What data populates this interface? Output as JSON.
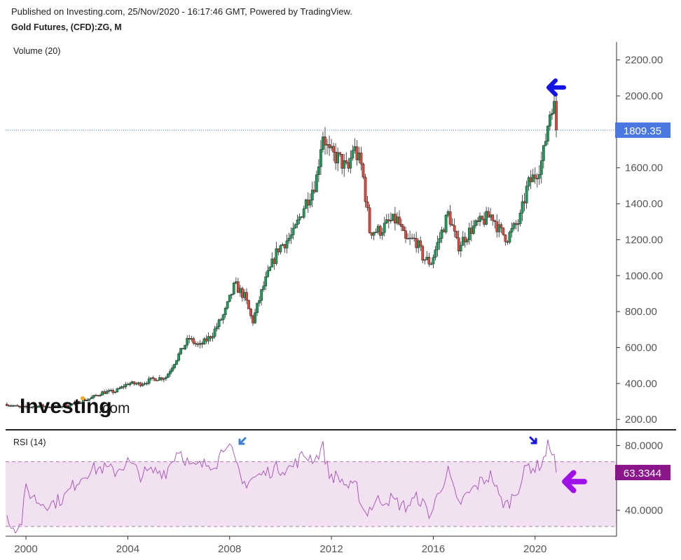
{
  "header": {
    "published": "Published on Investing.com, 25/Nov/2020 - 16:17:46 GMT, Powered by TradingView.",
    "title": "Gold Futures, (CFD):ZG, M"
  },
  "panes": {
    "volume_label": "Volume (20)",
    "rsi_label": "RSI (14)"
  },
  "watermark": {
    "brand": "Investing",
    "suffix": ".com"
  },
  "colors": {
    "up": "#1b9e5a",
    "down": "#e0473d",
    "price_line": "#4a78e0",
    "rsi_line": "#a24fb5",
    "rsi_band": "#f2e1f0",
    "rsi_band_line": "#b07ab0",
    "arrow_blue": "#1414e6",
    "arrow_lightblue": "#3d7fd0",
    "arrow_purple": "#a010e8",
    "rsi_badge": "#8b168b"
  },
  "icons": {
    "price_arrow": "arrow-left-icon",
    "rsi_arrow": "arrow-left-icon",
    "rsi_peak_markers": "arrow-down-icon"
  },
  "chart_data": [
    {
      "type": "candlestick",
      "title": "Gold Futures, (CFD):ZG, M",
      "y_ticks": [
        "2200.00",
        "2000.00",
        "1800.00",
        "1600.00",
        "1400.00",
        "1200.00",
        "1000.00",
        "800.00",
        "600.00",
        "400.00",
        "200.00"
      ],
      "y_tick_values": [
        2200,
        2000,
        1800,
        1600,
        1400,
        1200,
        1000,
        800,
        600,
        400,
        200
      ],
      "x_ticks": [
        "2000",
        "2004",
        "2008",
        "2012",
        "2016",
        "2020"
      ],
      "x_tick_values": [
        2000,
        2004,
        2008,
        2012,
        2016,
        2020
      ],
      "ylim": [
        150,
        2300
      ],
      "xlim": [
        1999.2,
        2023.2
      ],
      "last_price": 1809.35,
      "last_price_label": "1809.35",
      "anchors": [
        [
          1999.25,
          285
        ],
        [
          1999.8,
          265
        ],
        [
          2000.5,
          275
        ],
        [
          2001.2,
          268
        ],
        [
          2001.8,
          285
        ],
        [
          2002.5,
          315
        ],
        [
          2003.0,
          350
        ],
        [
          2003.5,
          355
        ],
        [
          2004.0,
          400
        ],
        [
          2004.5,
          398
        ],
        [
          2005.0,
          425
        ],
        [
          2005.5,
          435
        ],
        [
          2006.0,
          560
        ],
        [
          2006.4,
          650
        ],
        [
          2006.8,
          605
        ],
        [
          2007.3,
          670
        ],
        [
          2007.8,
          790
        ],
        [
          2008.2,
          950
        ],
        [
          2008.6,
          880
        ],
        [
          2008.9,
          740
        ],
        [
          2009.3,
          930
        ],
        [
          2009.9,
          1150
        ],
        [
          2010.5,
          1230
        ],
        [
          2010.9,
          1380
        ],
        [
          2011.4,
          1530
        ],
        [
          2011.65,
          1800
        ],
        [
          2011.9,
          1680
        ],
        [
          2012.3,
          1650
        ],
        [
          2012.65,
          1580
        ],
        [
          2012.85,
          1720
        ],
        [
          2013.2,
          1600
        ],
        [
          2013.5,
          1250
        ],
        [
          2013.9,
          1250
        ],
        [
          2014.3,
          1300
        ],
        [
          2014.6,
          1310
        ],
        [
          2014.9,
          1190
        ],
        [
          2015.3,
          1200
        ],
        [
          2015.6,
          1100
        ],
        [
          2015.9,
          1070
        ],
        [
          2016.3,
          1230
        ],
        [
          2016.6,
          1350
        ],
        [
          2016.95,
          1160
        ],
        [
          2017.5,
          1260
        ],
        [
          2017.9,
          1300
        ],
        [
          2018.3,
          1340
        ],
        [
          2018.6,
          1250
        ],
        [
          2018.9,
          1210
        ],
        [
          2019.4,
          1310
        ],
        [
          2019.7,
          1500
        ],
        [
          2020.0,
          1560
        ],
        [
          2020.3,
          1650
        ],
        [
          2020.55,
          1890
        ],
        [
          2020.7,
          1980
        ],
        [
          2020.8,
          1890
        ],
        [
          2020.87,
          1809
        ]
      ]
    },
    {
      "type": "line",
      "title": "RSI (14)",
      "y_ticks": [
        "80.0000",
        "40.0000"
      ],
      "y_tick_values": [
        80,
        40
      ],
      "overbought": 70,
      "oversold": 30,
      "ylim": [
        24,
        88
      ],
      "last_value": 63.3344,
      "last_value_label": "63.3344",
      "anchors": [
        [
          1999.25,
          37
        ],
        [
          1999.5,
          30
        ],
        [
          1999.8,
          30
        ],
        [
          2000.0,
          53
        ],
        [
          2000.5,
          45
        ],
        [
          2001.0,
          44
        ],
        [
          2001.5,
          48
        ],
        [
          2002.0,
          58
        ],
        [
          2002.5,
          65
        ],
        [
          2003.0,
          66
        ],
        [
          2003.5,
          64
        ],
        [
          2004.0,
          70
        ],
        [
          2004.5,
          62
        ],
        [
          2005.0,
          64
        ],
        [
          2005.5,
          64
        ],
        [
          2006.0,
          78
        ],
        [
          2006.5,
          66
        ],
        [
          2007.0,
          68
        ],
        [
          2007.5,
          70
        ],
        [
          2007.9,
          84
        ],
        [
          2008.2,
          70
        ],
        [
          2008.5,
          56
        ],
        [
          2008.9,
          60
        ],
        [
          2009.3,
          62
        ],
        [
          2009.8,
          66
        ],
        [
          2010.4,
          66
        ],
        [
          2010.9,
          74
        ],
        [
          2011.4,
          72
        ],
        [
          2011.65,
          80
        ],
        [
          2011.9,
          62
        ],
        [
          2012.3,
          60
        ],
        [
          2012.7,
          54
        ],
        [
          2013.0,
          54
        ],
        [
          2013.3,
          38
        ],
        [
          2013.8,
          46
        ],
        [
          2014.3,
          47
        ],
        [
          2014.9,
          42
        ],
        [
          2015.4,
          48
        ],
        [
          2015.9,
          37
        ],
        [
          2016.3,
          55
        ],
        [
          2016.6,
          64
        ],
        [
          2016.95,
          43
        ],
        [
          2017.5,
          52
        ],
        [
          2017.9,
          58
        ],
        [
          2018.3,
          62
        ],
        [
          2018.6,
          47
        ],
        [
          2018.9,
          43
        ],
        [
          2019.4,
          56
        ],
        [
          2019.7,
          68
        ],
        [
          2020.0,
          66
        ],
        [
          2020.3,
          70
        ],
        [
          2020.55,
          82
        ],
        [
          2020.7,
          75
        ],
        [
          2020.87,
          63.33
        ]
      ]
    }
  ]
}
